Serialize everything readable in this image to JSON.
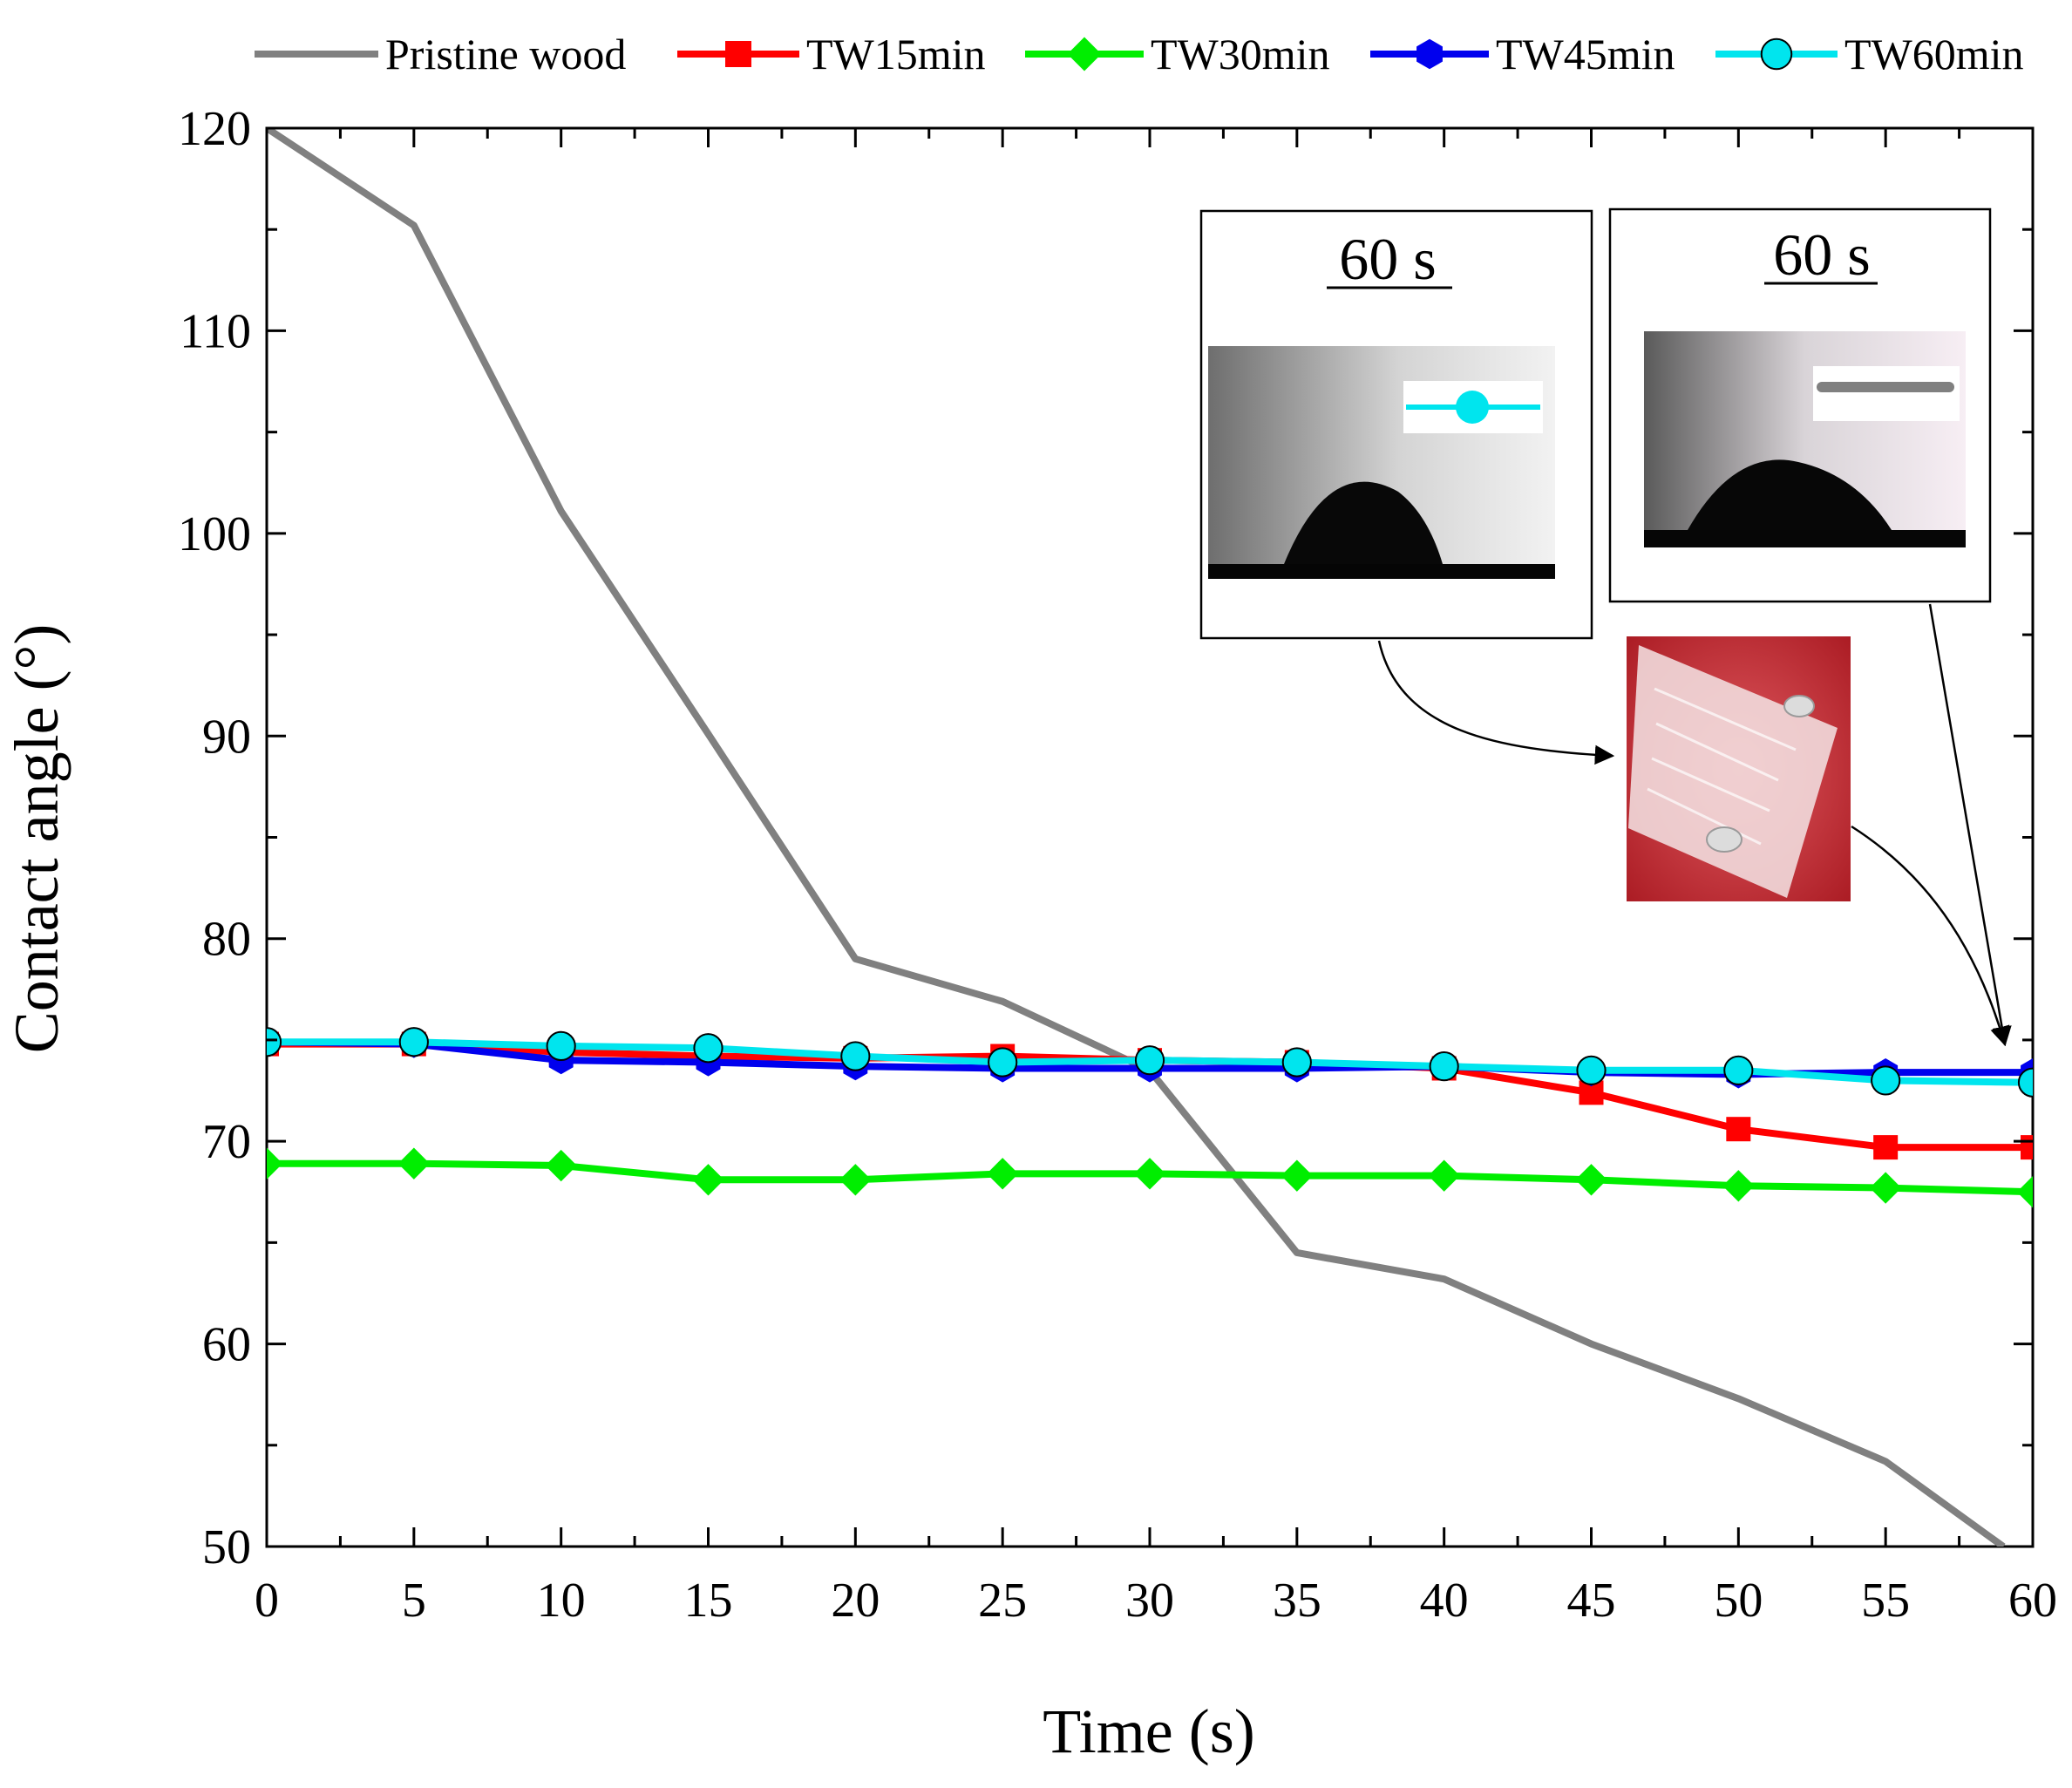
{
  "chart_data": {
    "type": "line",
    "title": "",
    "xlabel": "Time (s)",
    "ylabel": "Contact angle (°)",
    "xlim": [
      0,
      60
    ],
    "ylim": [
      50,
      120
    ],
    "x_ticks": [
      0,
      5,
      10,
      15,
      20,
      25,
      30,
      35,
      40,
      45,
      50,
      55,
      60
    ],
    "y_ticks": [
      50,
      60,
      70,
      80,
      90,
      100,
      110,
      120
    ],
    "x_tick_labels": [
      "0",
      "5",
      "10",
      "15",
      "20",
      "25",
      "30",
      "35",
      "40",
      "45",
      "50",
      "55",
      "60"
    ],
    "y_tick_labels": [
      "50",
      "60",
      "70",
      "80",
      "90",
      "100",
      "110",
      "120"
    ],
    "grid": false,
    "legend_position": "top",
    "series": [
      {
        "name": "Pristine wood",
        "color": "#808080",
        "marker": "none",
        "x": [
          0,
          5,
          10,
          15,
          20,
          25,
          30,
          35,
          40,
          45,
          50,
          55,
          59
        ],
        "y": [
          120,
          115.2,
          101.1,
          90.1,
          79,
          76.9,
          73.5,
          64.5,
          63.2,
          60,
          57.3,
          54.2,
          50
        ]
      },
      {
        "name": "TW15min",
        "color": "#ff0000",
        "marker": "square",
        "x": [
          0,
          5,
          10,
          15,
          20,
          25,
          30,
          35,
          40,
          45,
          50,
          55,
          60
        ],
        "y": [
          74.8,
          74.8,
          74.4,
          74.2,
          74.1,
          74.2,
          74.0,
          73.9,
          73.6,
          72.4,
          70.6,
          69.7,
          69.7
        ]
      },
      {
        "name": "TW30min",
        "color": "#00ee00",
        "marker": "diamond",
        "x": [
          0,
          5,
          10,
          15,
          20,
          25,
          30,
          35,
          40,
          45,
          50,
          55,
          60
        ],
        "y": [
          68.9,
          68.9,
          68.8,
          68.1,
          68.1,
          68.4,
          68.4,
          68.3,
          68.3,
          68.1,
          67.8,
          67.7,
          67.5
        ]
      },
      {
        "name": "TW45min",
        "color": "#0000ee",
        "marker": "hexagon",
        "x": [
          0,
          5,
          10,
          15,
          20,
          25,
          30,
          35,
          40,
          45,
          50,
          55,
          60
        ],
        "y": [
          74.9,
          74.8,
          74.0,
          73.9,
          73.7,
          73.6,
          73.6,
          73.6,
          73.7,
          73.4,
          73.3,
          73.4,
          73.4
        ]
      },
      {
        "name": "TW60min",
        "color": "#00e5ee",
        "marker": "circle",
        "x": [
          0,
          5,
          10,
          15,
          20,
          25,
          30,
          35,
          40,
          45,
          50,
          55,
          60
        ],
        "y": [
          74.9,
          74.9,
          74.7,
          74.6,
          74.2,
          73.9,
          74.0,
          73.9,
          73.7,
          73.5,
          73.5,
          73.0,
          72.9
        ]
      }
    ],
    "annotations": [
      {
        "text": "60 s",
        "kind": "inset-photo-title",
        "description_key": "inset_left"
      },
      {
        "text": "60 s",
        "kind": "inset-photo-title",
        "description_key": "inset_right"
      }
    ]
  },
  "inset_left": {
    "title": "60 s"
  },
  "inset_right": {
    "title": "60 s"
  },
  "colors": {
    "axis": "#000000",
    "pristine": "#808080",
    "tw15": "#ff0000",
    "tw30": "#00ee00",
    "tw45": "#0000ee",
    "tw60": "#00e5ee",
    "photo_red": "#c8242c"
  }
}
